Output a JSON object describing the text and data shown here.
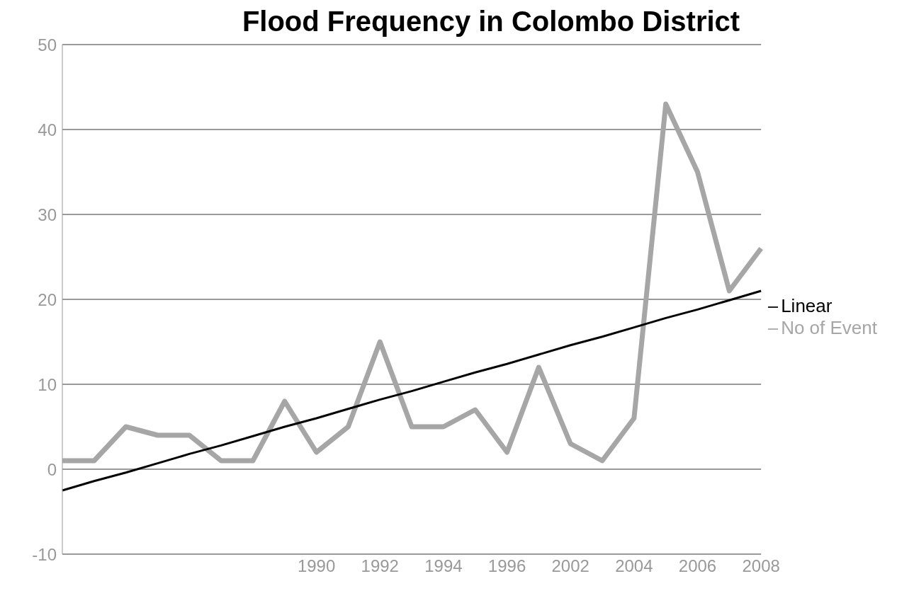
{
  "chart_data": {
    "type": "line",
    "title": "Flood Frequency in Colombo District",
    "categories": [
      null,
      null,
      null,
      null,
      null,
      null,
      null,
      null,
      "1990",
      null,
      "1992",
      null,
      "1994",
      null,
      "1996",
      null,
      "2002",
      null,
      "2004",
      null,
      "2006",
      null,
      "2008"
    ],
    "series": [
      {
        "name": "No of Event",
        "color": "#a6a6a6",
        "values": [
          1,
          1,
          5,
          4,
          4,
          1,
          1,
          8,
          2,
          5,
          15,
          5,
          5,
          7,
          2,
          12,
          3,
          1,
          6,
          43,
          35,
          21,
          26
        ]
      },
      {
        "name": "Linear",
        "color": "#000000",
        "values": [
          -2.5,
          -1.4,
          -0.4,
          0.7,
          1.8,
          2.8,
          3.9,
          5.0,
          6.0,
          7.1,
          8.2,
          9.2,
          10.3,
          11.4,
          12.4,
          13.5,
          14.6,
          15.6,
          16.7,
          17.8,
          18.8,
          19.9,
          21.0
        ]
      }
    ],
    "ylim": [
      -10,
      50
    ],
    "yticks": [
      -10,
      0,
      10,
      20,
      30,
      40,
      50
    ],
    "grid": "y",
    "legend": "right",
    "marker": "none",
    "line_style": "solid"
  }
}
